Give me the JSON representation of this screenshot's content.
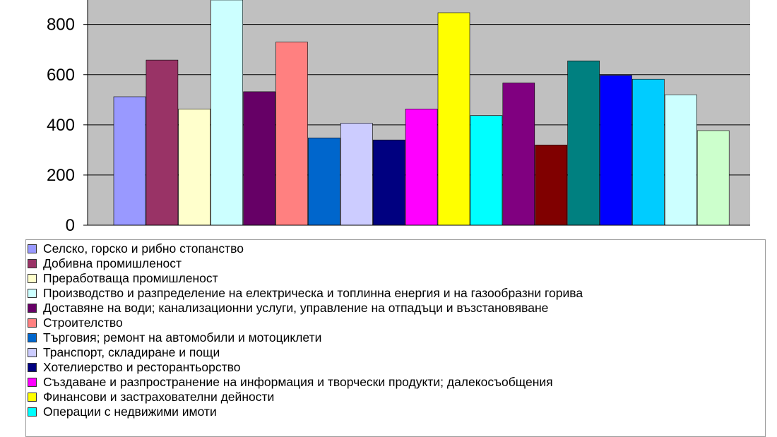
{
  "chart_data": {
    "type": "bar",
    "ylim": [
      0,
      900
    ],
    "yticks": [
      "0",
      "200",
      "400",
      "600",
      "800"
    ],
    "grid": true,
    "plot_background": "#c0c0c0",
    "legend_position": "bottom",
    "series": [
      {
        "name": "Селско, горско и рибно стопанство",
        "value": 512,
        "color": "#9999ff"
      },
      {
        "name": "Добивна промишленост",
        "value": 658,
        "color": "#993366"
      },
      {
        "name": "Преработваща промишленост",
        "value": 463,
        "color": "#ffffcc"
      },
      {
        "name": "Производство и разпределение на електрическа и топлинна енергия и на газообразни горива",
        "value": 905,
        "color": "#ccffff"
      },
      {
        "name": "Доставяне на води; канализационни услуги, управление на отпадъци и възстановяване",
        "value": 532,
        "color": "#660066"
      },
      {
        "name": "Строителство",
        "value": 730,
        "color": "#ff8080"
      },
      {
        "name": "Търговия; ремонт на автомобили и мотоциклети",
        "value": 348,
        "color": "#0066cc"
      },
      {
        "name": "Транспорт, складиране и пощи",
        "value": 407,
        "color": "#ccccff"
      },
      {
        "name": "Хотелиерство и ресторантьорство",
        "value": 340,
        "color": "#000080"
      },
      {
        "name": "Създаване и разпространение на информация и творчески продукти; далекосъобщения",
        "value": 463,
        "color": "#ff00ff"
      },
      {
        "name": "Финансови и застрахователни дейности",
        "value": 847,
        "color": "#ffff00"
      },
      {
        "name": "Операции с недвижими имоти",
        "value": 437,
        "color": "#00ffff"
      },
      {
        "name": "",
        "value": 567,
        "color": "#800080"
      },
      {
        "name": "",
        "value": 320,
        "color": "#800000"
      },
      {
        "name": "",
        "value": 655,
        "color": "#008080"
      },
      {
        "name": "",
        "value": 597,
        "color": "#0000ff"
      },
      {
        "name": "",
        "value": 582,
        "color": "#00ccff"
      },
      {
        "name": "",
        "value": 520,
        "color": "#ccffff"
      },
      {
        "name": "",
        "value": 377,
        "color": "#ccffcc"
      }
    ]
  }
}
